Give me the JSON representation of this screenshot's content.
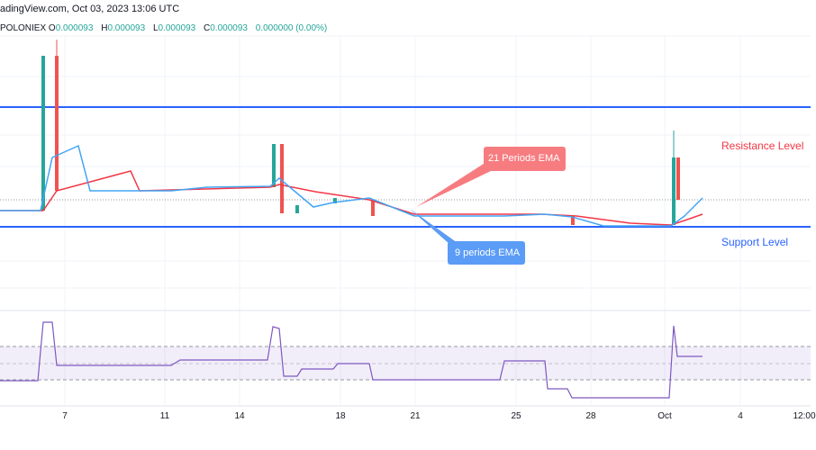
{
  "header": {
    "title": "adingView.com, Oct 03, 2023 13:06 UTC"
  },
  "ohlc": {
    "exchange": "POLONIEX",
    "o_label": "O",
    "o": "0.000093",
    "h_label": "H",
    "h": "0.000093",
    "l_label": "L",
    "l": "0.000093",
    "c_label": "C",
    "c": "0.000093",
    "change": "0.000000 (0.00%)"
  },
  "annotations": {
    "resistance": "Resistance Level",
    "support": "Support Level",
    "ema21": "21 Periods EMA",
    "ema9": "9 periods EMA"
  },
  "x_axis": [
    "7",
    "11",
    "14",
    "18",
    "21",
    "25",
    "28",
    "Oct",
    "4",
    "12:00"
  ],
  "colors": {
    "up": "#26a69a",
    "down": "#ef5350",
    "level": "#2962ff",
    "ema9": "#42a5f5",
    "ema21": "#f23645",
    "rsi": "#7e57c2"
  }
}
